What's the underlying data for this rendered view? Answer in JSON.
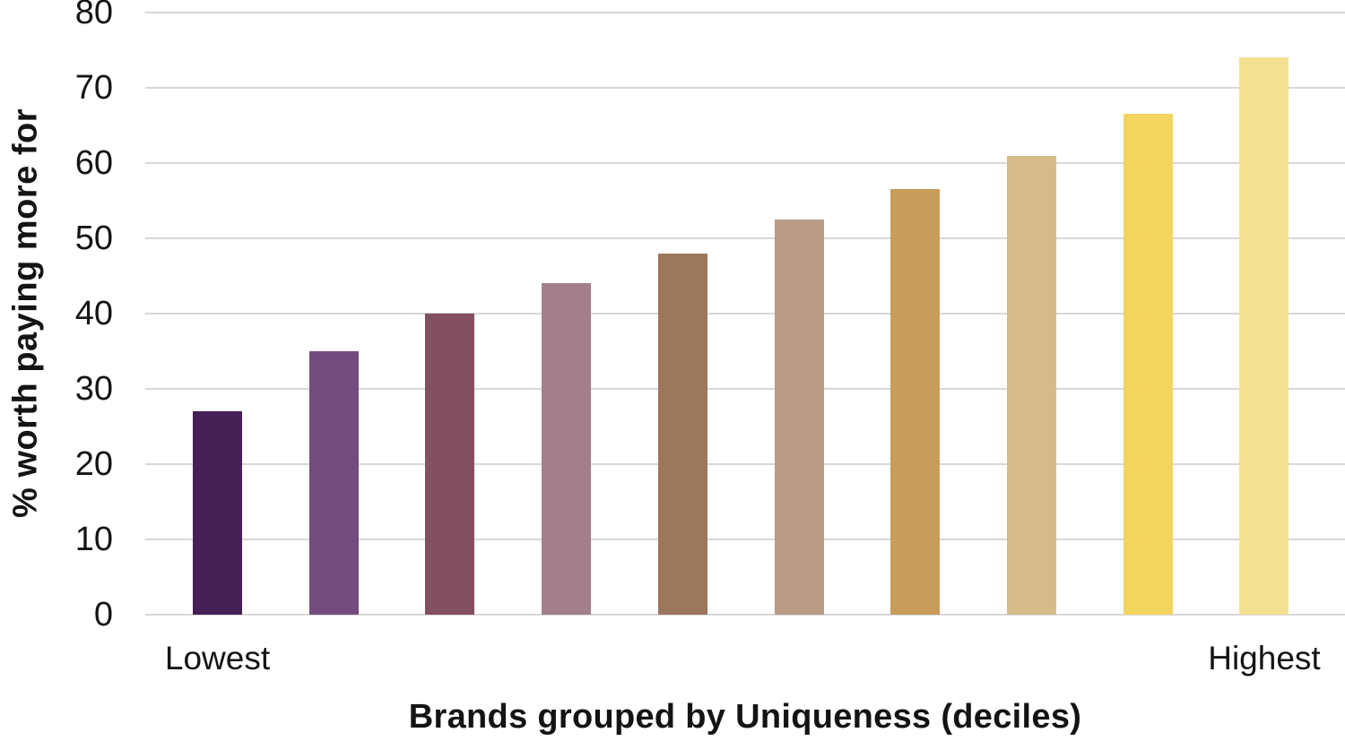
{
  "chart_data": {
    "type": "bar",
    "title": "",
    "xlabel": "Brands grouped by Uniqueness (deciles)",
    "ylabel": "% worth paying more for",
    "categories": [
      "Lowest",
      "",
      "",
      "",
      "",
      "",
      "",
      "",
      "",
      "Highest"
    ],
    "values": [
      27,
      35,
      40,
      44,
      48,
      52.5,
      56.5,
      61,
      66.5,
      74
    ],
    "bar_colors": [
      "#452057",
      "#744B7F",
      "#82505F",
      "#A37F8A",
      "#9D775C",
      "#B89A85",
      "#C79D5C",
      "#D4BB87",
      "#F2D45F",
      "#F2E192"
    ],
    "ylim": [
      0,
      80
    ],
    "yticks": [
      0,
      10,
      20,
      30,
      40,
      50,
      60,
      70,
      80
    ],
    "grid": true,
    "legend": false,
    "gridline_color": "#D8D8D8",
    "background_color": "#FFFFFF",
    "text_color": "#141414"
  }
}
